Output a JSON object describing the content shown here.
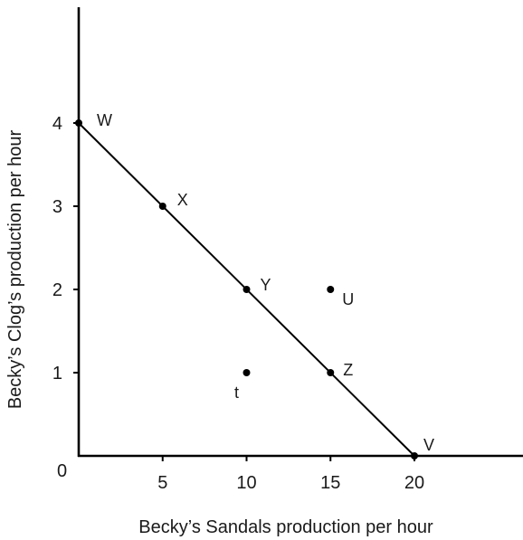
{
  "chart_data": {
    "type": "scatter",
    "xlabel": "Becky’s Sandals production per hour",
    "ylabel": "Becky’s Clog’s production per hour",
    "origin_label": "0",
    "xlim": [
      0,
      25
    ],
    "ylim": [
      0,
      5.4
    ],
    "x_ticks": [
      5,
      10,
      15,
      20
    ],
    "x_tick_labels": [
      "5",
      "10",
      "15",
      "20"
    ],
    "y_ticks": [
      1,
      2,
      3,
      4
    ],
    "y_tick_labels": [
      "1",
      "2",
      "3",
      "4"
    ],
    "grid": false,
    "line": {
      "from": [
        0,
        4
      ],
      "to": [
        20,
        0
      ]
    },
    "points": [
      {
        "label": "W",
        "x": 0,
        "y": 4
      },
      {
        "label": "X",
        "x": 5,
        "y": 3
      },
      {
        "label": "Y",
        "x": 10,
        "y": 2
      },
      {
        "label": "Z",
        "x": 15,
        "y": 1
      },
      {
        "label": "V",
        "x": 20,
        "y": 0
      },
      {
        "label": "U",
        "x": 15,
        "y": 2
      },
      {
        "label": "t",
        "x": 10,
        "y": 1
      }
    ]
  }
}
